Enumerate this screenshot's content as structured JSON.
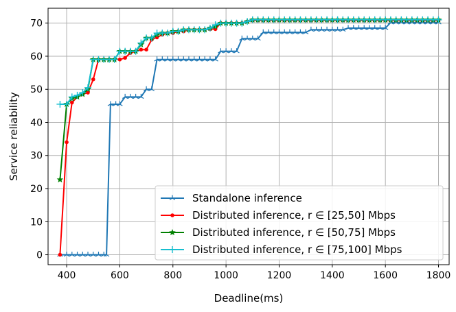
{
  "chart_data": {
    "type": "line",
    "xlabel": "Deadline(ms)",
    "ylabel": "Service reliability",
    "xlim": [
      330,
      1840
    ],
    "ylim": [
      -3,
      74.5
    ],
    "xticks": [
      400,
      600,
      800,
      1000,
      1200,
      1400,
      1600,
      1800
    ],
    "yticks": [
      0,
      10,
      20,
      30,
      40,
      50,
      60,
      70
    ],
    "grid": true,
    "legend_position": "bottom-right",
    "series": [
      {
        "name": "Standalone inference",
        "color": "#1f77b4",
        "marker": "tri",
        "points": [
          [
            375,
            0
          ],
          [
            400,
            0
          ],
          [
            420,
            0
          ],
          [
            440,
            0
          ],
          [
            460,
            0
          ],
          [
            480,
            0
          ],
          [
            500,
            0
          ],
          [
            520,
            0
          ],
          [
            540,
            0
          ],
          [
            550,
            0
          ],
          [
            565,
            45.5
          ],
          [
            585,
            45.5
          ],
          [
            600,
            45.5
          ],
          [
            620,
            47.7
          ],
          [
            640,
            47.7
          ],
          [
            660,
            47.7
          ],
          [
            680,
            47.7
          ],
          [
            700,
            50
          ],
          [
            720,
            50
          ],
          [
            740,
            59
          ],
          [
            760,
            59
          ],
          [
            780,
            59
          ],
          [
            800,
            59
          ],
          [
            820,
            59
          ],
          [
            840,
            59
          ],
          [
            860,
            59
          ],
          [
            880,
            59
          ],
          [
            900,
            59
          ],
          [
            920,
            59
          ],
          [
            940,
            59
          ],
          [
            960,
            59
          ],
          [
            980,
            61.5
          ],
          [
            1000,
            61.5
          ],
          [
            1020,
            61.5
          ],
          [
            1040,
            61.5
          ],
          [
            1060,
            65.3
          ],
          [
            1080,
            65.3
          ],
          [
            1100,
            65.3
          ],
          [
            1120,
            65.3
          ],
          [
            1140,
            67.2
          ],
          [
            1160,
            67.2
          ],
          [
            1180,
            67.2
          ],
          [
            1200,
            67.2
          ],
          [
            1220,
            67.2
          ],
          [
            1240,
            67.2
          ],
          [
            1260,
            67.2
          ],
          [
            1280,
            67.2
          ],
          [
            1300,
            67.2
          ],
          [
            1320,
            68
          ],
          [
            1340,
            68
          ],
          [
            1360,
            68
          ],
          [
            1380,
            68
          ],
          [
            1400,
            68
          ],
          [
            1420,
            68
          ],
          [
            1440,
            68
          ],
          [
            1460,
            68.5
          ],
          [
            1480,
            68.5
          ],
          [
            1500,
            68.5
          ],
          [
            1520,
            68.5
          ],
          [
            1540,
            68.5
          ],
          [
            1560,
            68.5
          ],
          [
            1580,
            68.5
          ],
          [
            1600,
            68.5
          ],
          [
            1620,
            70.2
          ],
          [
            1640,
            70.2
          ],
          [
            1660,
            70.2
          ],
          [
            1680,
            70.2
          ],
          [
            1700,
            70.2
          ],
          [
            1720,
            70.2
          ],
          [
            1740,
            70.2
          ],
          [
            1760,
            70.2
          ],
          [
            1780,
            70.2
          ],
          [
            1800,
            70.2
          ]
        ]
      },
      {
        "name": "Distributed inference, r ∈ [25,50] Mbps",
        "color": "#ff0000",
        "marker": "circle",
        "points": [
          [
            375,
            0
          ],
          [
            400,
            34
          ],
          [
            420,
            46
          ],
          [
            440,
            47.7
          ],
          [
            460,
            48.5
          ],
          [
            480,
            49
          ],
          [
            500,
            53
          ],
          [
            520,
            59
          ],
          [
            540,
            59
          ],
          [
            560,
            59
          ],
          [
            580,
            59
          ],
          [
            600,
            59
          ],
          [
            620,
            59.5
          ],
          [
            640,
            61
          ],
          [
            660,
            61.5
          ],
          [
            680,
            62
          ],
          [
            700,
            62
          ],
          [
            720,
            65
          ],
          [
            740,
            65.7
          ],
          [
            760,
            66.5
          ],
          [
            780,
            67
          ],
          [
            800,
            67
          ],
          [
            820,
            67.5
          ],
          [
            840,
            67.5
          ],
          [
            860,
            68
          ],
          [
            880,
            68
          ],
          [
            900,
            68
          ],
          [
            920,
            68
          ],
          [
            940,
            68.2
          ],
          [
            960,
            68.2
          ],
          [
            980,
            70
          ],
          [
            1000,
            70
          ],
          [
            1020,
            70
          ],
          [
            1040,
            70
          ],
          [
            1060,
            70
          ],
          [
            1080,
            70.5
          ],
          [
            1100,
            70.8
          ],
          [
            1120,
            70.8
          ],
          [
            1140,
            70.8
          ],
          [
            1160,
            70.8
          ],
          [
            1180,
            70.8
          ],
          [
            1200,
            70.8
          ],
          [
            1220,
            70.8
          ],
          [
            1240,
            70.8
          ],
          [
            1260,
            70.8
          ],
          [
            1280,
            70.8
          ],
          [
            1300,
            70.8
          ],
          [
            1320,
            70.8
          ],
          [
            1340,
            70.8
          ],
          [
            1360,
            70.8
          ],
          [
            1380,
            70.8
          ],
          [
            1400,
            70.8
          ],
          [
            1420,
            70.8
          ],
          [
            1440,
            70.8
          ],
          [
            1460,
            70.8
          ],
          [
            1480,
            70.8
          ],
          [
            1500,
            70.8
          ],
          [
            1520,
            70.8
          ],
          [
            1540,
            70.8
          ],
          [
            1560,
            70.8
          ],
          [
            1580,
            70.8
          ],
          [
            1600,
            70.8
          ],
          [
            1620,
            70.8
          ],
          [
            1640,
            70.8
          ],
          [
            1660,
            70.8
          ],
          [
            1680,
            70.8
          ],
          [
            1700,
            70.8
          ],
          [
            1720,
            70.8
          ],
          [
            1740,
            70.8
          ],
          [
            1760,
            70.8
          ],
          [
            1780,
            70.8
          ],
          [
            1800,
            70.8
          ]
        ]
      },
      {
        "name": "Distributed inference, r ∈ [50,75] Mbps",
        "color": "#008000",
        "marker": "star",
        "points": [
          [
            375,
            22.7
          ],
          [
            400,
            45.5
          ],
          [
            420,
            47.2
          ],
          [
            440,
            47.7
          ],
          [
            460,
            48.5
          ],
          [
            480,
            50
          ],
          [
            500,
            59
          ],
          [
            520,
            59
          ],
          [
            540,
            59
          ],
          [
            560,
            59
          ],
          [
            580,
            59
          ],
          [
            600,
            61.5
          ],
          [
            620,
            61.5
          ],
          [
            640,
            61.5
          ],
          [
            660,
            61.5
          ],
          [
            680,
            63.5
          ],
          [
            700,
            65.5
          ],
          [
            720,
            65.5
          ],
          [
            740,
            66.5
          ],
          [
            760,
            67
          ],
          [
            780,
            67
          ],
          [
            800,
            67.5
          ],
          [
            820,
            67.5
          ],
          [
            840,
            68
          ],
          [
            860,
            68
          ],
          [
            880,
            68
          ],
          [
            900,
            68
          ],
          [
            920,
            68
          ],
          [
            940,
            68.5
          ],
          [
            960,
            69
          ],
          [
            980,
            70
          ],
          [
            1000,
            70
          ],
          [
            1020,
            70
          ],
          [
            1040,
            70
          ],
          [
            1060,
            70
          ],
          [
            1080,
            70.5
          ],
          [
            1100,
            71
          ],
          [
            1120,
            71
          ],
          [
            1140,
            71
          ],
          [
            1160,
            71
          ],
          [
            1180,
            71
          ],
          [
            1200,
            71
          ],
          [
            1220,
            71
          ],
          [
            1240,
            71
          ],
          [
            1260,
            71
          ],
          [
            1280,
            71
          ],
          [
            1300,
            71
          ],
          [
            1320,
            71
          ],
          [
            1340,
            71
          ],
          [
            1360,
            71
          ],
          [
            1380,
            71
          ],
          [
            1400,
            71
          ],
          [
            1420,
            71
          ],
          [
            1440,
            71
          ],
          [
            1460,
            71
          ],
          [
            1480,
            71
          ],
          [
            1500,
            71
          ],
          [
            1520,
            71
          ],
          [
            1540,
            71
          ],
          [
            1560,
            71
          ],
          [
            1580,
            71
          ],
          [
            1600,
            71
          ],
          [
            1620,
            71
          ],
          [
            1640,
            71
          ],
          [
            1660,
            71
          ],
          [
            1680,
            71
          ],
          [
            1700,
            71
          ],
          [
            1720,
            71
          ],
          [
            1740,
            71
          ],
          [
            1760,
            71
          ],
          [
            1780,
            71
          ],
          [
            1800,
            71
          ]
        ]
      },
      {
        "name": "Distributed inference, r ∈ [75,100] Mbps",
        "color": "#17becf",
        "marker": "plus",
        "points": [
          [
            375,
            45.5
          ],
          [
            400,
            45.5
          ],
          [
            420,
            47.7
          ],
          [
            440,
            48.2
          ],
          [
            460,
            49
          ],
          [
            480,
            50.5
          ],
          [
            500,
            59
          ],
          [
            520,
            59
          ],
          [
            540,
            59
          ],
          [
            560,
            59
          ],
          [
            580,
            59
          ],
          [
            600,
            61.5
          ],
          [
            620,
            61.5
          ],
          [
            640,
            61.5
          ],
          [
            660,
            61.5
          ],
          [
            680,
            64
          ],
          [
            700,
            65.5
          ],
          [
            720,
            65.5
          ],
          [
            740,
            67
          ],
          [
            760,
            67
          ],
          [
            780,
            67
          ],
          [
            800,
            67.5
          ],
          [
            820,
            67.5
          ],
          [
            840,
            68
          ],
          [
            860,
            68
          ],
          [
            880,
            68
          ],
          [
            900,
            68
          ],
          [
            920,
            68
          ],
          [
            940,
            68.5
          ],
          [
            960,
            69.5
          ],
          [
            980,
            70
          ],
          [
            1000,
            70
          ],
          [
            1020,
            70
          ],
          [
            1040,
            70
          ],
          [
            1060,
            70
          ],
          [
            1080,
            70.5
          ],
          [
            1100,
            71
          ],
          [
            1120,
            71
          ],
          [
            1140,
            71
          ],
          [
            1160,
            71
          ],
          [
            1180,
            71
          ],
          [
            1200,
            71
          ],
          [
            1220,
            71
          ],
          [
            1240,
            71
          ],
          [
            1260,
            71
          ],
          [
            1280,
            71
          ],
          [
            1300,
            71
          ],
          [
            1320,
            71
          ],
          [
            1340,
            71
          ],
          [
            1360,
            71
          ],
          [
            1380,
            71
          ],
          [
            1400,
            71
          ],
          [
            1420,
            71
          ],
          [
            1440,
            71
          ],
          [
            1460,
            71
          ],
          [
            1480,
            71
          ],
          [
            1500,
            71
          ],
          [
            1520,
            71
          ],
          [
            1540,
            71
          ],
          [
            1560,
            71
          ],
          [
            1580,
            71
          ],
          [
            1600,
            71
          ],
          [
            1620,
            71
          ],
          [
            1640,
            71
          ],
          [
            1660,
            71
          ],
          [
            1680,
            71
          ],
          [
            1700,
            71
          ],
          [
            1720,
            71
          ],
          [
            1740,
            71
          ],
          [
            1760,
            71
          ],
          [
            1780,
            71
          ],
          [
            1800,
            71
          ]
        ]
      }
    ]
  }
}
